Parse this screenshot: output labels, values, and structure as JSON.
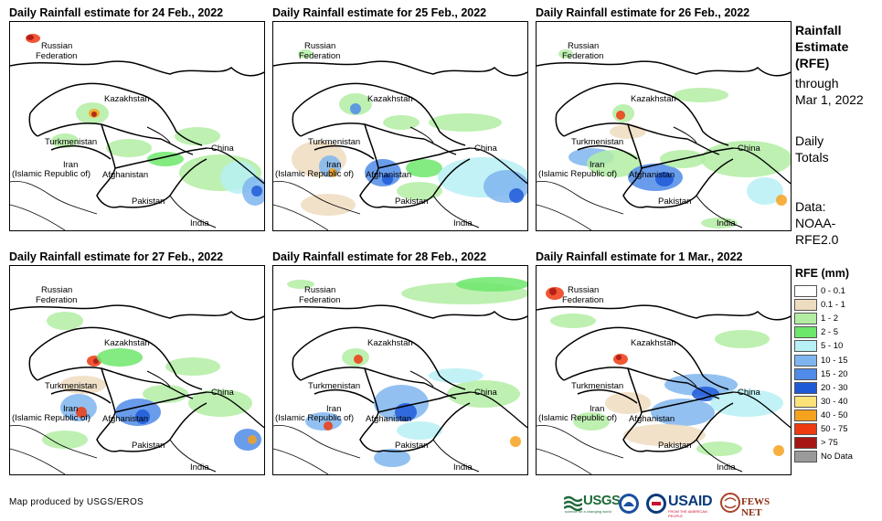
{
  "panels": [
    {
      "title": "Daily Rainfall estimate for 24 Feb., 2022"
    },
    {
      "title": "Daily Rainfall estimate for 25 Feb., 2022"
    },
    {
      "title": "Daily Rainfall estimate for 26 Feb., 2022"
    },
    {
      "title": "Daily Rainfall estimate for 27 Feb., 2022"
    },
    {
      "title": "Daily Rainfall estimate for 28 Feb., 2022"
    },
    {
      "title": "Daily Rainfall estimate for 1 Mar., 2022"
    }
  ],
  "map_labels": {
    "russia_1": "Russian",
    "russia_2": "Federation",
    "kazakhstan": "Kazakhstan",
    "turkmenistan": "Turkmenistan",
    "iran_1": "Iran",
    "iran_2": "(Islamic Republic of)",
    "afghanistan": "Afghanistan",
    "pakistan": "Pakistan",
    "china": "China",
    "india": "India"
  },
  "sidebar": {
    "title_1": "Rainfall",
    "title_2": "Estimate",
    "title_3": "(RFE)",
    "through_1": "through",
    "through_2": "Mar 1, 2022",
    "daily_1": "Daily",
    "daily_2": "Totals",
    "data_1": "Data:",
    "data_2": "NOAA-",
    "data_3": "RFE2.0"
  },
  "legend": {
    "title": "RFE (mm)",
    "items": [
      {
        "label": "0 - 0.1",
        "color": "#ffffff"
      },
      {
        "label": "0.1 - 1",
        "color": "#eedcc0"
      },
      {
        "label": "1 - 2",
        "color": "#b3eda3"
      },
      {
        "label": "2 - 5",
        "color": "#6ee66c"
      },
      {
        "label": "5 - 10",
        "color": "#b7f0f5"
      },
      {
        "label": "10 - 15",
        "color": "#7fb5ef"
      },
      {
        "label": "15 - 20",
        "color": "#4f8be8"
      },
      {
        "label": "20 - 30",
        "color": "#1e5ad8"
      },
      {
        "label": "30 - 40",
        "color": "#fbe37a"
      },
      {
        "label": "40 - 50",
        "color": "#f6a21e"
      },
      {
        "label": "50 - 75",
        "color": "#ee3a10"
      },
      {
        "label": "> 75",
        "color": "#a81515"
      },
      {
        "label": "No Data",
        "color": "#9a9a9a"
      }
    ]
  },
  "credit": "Map produced by USGS/EROS",
  "logos": {
    "usgs": "USGS",
    "usgs_tagline": "science for a changing world",
    "usaid": "USAID",
    "usaid_tagline": "FROM THE AMERICAN PEOPLE",
    "fewsnet": "FEWS NET"
  }
}
